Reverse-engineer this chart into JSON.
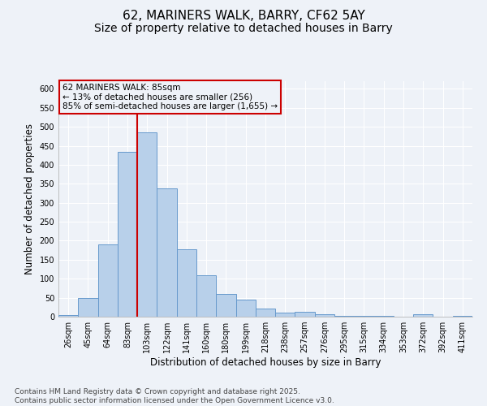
{
  "title": "62, MARINERS WALK, BARRY, CF62 5AY",
  "subtitle": "Size of property relative to detached houses in Barry",
  "xlabel": "Distribution of detached houses by size in Barry",
  "ylabel": "Number of detached properties",
  "categories": [
    "26sqm",
    "45sqm",
    "64sqm",
    "83sqm",
    "103sqm",
    "122sqm",
    "141sqm",
    "160sqm",
    "180sqm",
    "199sqm",
    "218sqm",
    "238sqm",
    "257sqm",
    "276sqm",
    "295sqm",
    "315sqm",
    "334sqm",
    "353sqm",
    "372sqm",
    "392sqm",
    "411sqm"
  ],
  "values": [
    5,
    50,
    190,
    435,
    485,
    338,
    178,
    110,
    60,
    44,
    22,
    10,
    12,
    7,
    3,
    3,
    2,
    1,
    6,
    1,
    2
  ],
  "bar_color": "#b8d0ea",
  "bar_edge_color": "#6699cc",
  "vline_color": "#cc0000",
  "vline_position": 3.5,
  "ylim": [
    0,
    620
  ],
  "yticks": [
    0,
    50,
    100,
    150,
    200,
    250,
    300,
    350,
    400,
    450,
    500,
    550,
    600
  ],
  "annotation_box_text": "62 MARINERS WALK: 85sqm\n← 13% of detached houses are smaller (256)\n85% of semi-detached houses are larger (1,655) →",
  "footer_text": "Contains HM Land Registry data © Crown copyright and database right 2025.\nContains public sector information licensed under the Open Government Licence v3.0.",
  "background_color": "#eef2f8",
  "grid_color": "#ffffff",
  "title_fontsize": 11,
  "subtitle_fontsize": 10,
  "axis_label_fontsize": 8.5,
  "tick_fontsize": 7,
  "annotation_fontsize": 7.5,
  "footer_fontsize": 6.5
}
